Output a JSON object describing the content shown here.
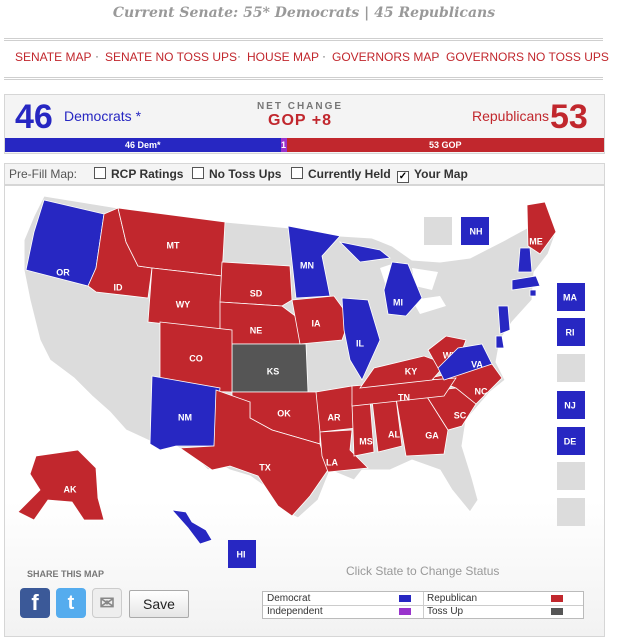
{
  "headline": "Current Senate: 55* Democrats | 45 Republicans",
  "nav": [
    "SENATE MAP",
    "SENATE NO TOSS UPS",
    "HOUSE MAP",
    "GOVERNORS MAP",
    "GOVERNORS NO TOSS UPS"
  ],
  "score": {
    "dem_count": "46",
    "dem_label": "Democrats *",
    "net_change_label": "NET CHANGE",
    "net_change_value": "GOP +8",
    "rep_label": "Republicans",
    "rep_count": "53"
  },
  "seat_bar": {
    "dem_text": "46 Dem*",
    "tossup_text": "1",
    "gop_text": "53 GOP",
    "dem_seats": 46,
    "tossup_seats": 1,
    "gop_seats": 53
  },
  "prefill": {
    "label": "Pre-Fill Map:",
    "options": [
      {
        "label": "RCP Ratings",
        "checked": false
      },
      {
        "label": "No Toss Ups",
        "checked": false
      },
      {
        "label": "Currently Held",
        "checked": false
      },
      {
        "label": "Your Map",
        "checked": true
      }
    ]
  },
  "states": {
    "OR": "Democrat",
    "MT": "Republican",
    "ID": "Republican",
    "WY": "Republican",
    "SD": "Republican",
    "NE": "Republican",
    "KS": "Toss Up",
    "CO": "Republican",
    "NM": "Democrat",
    "OK": "Republican",
    "TX": "Republican",
    "MN": "Democrat",
    "IA": "Republican",
    "AR": "Republican",
    "LA": "Republican",
    "MS": "Republican",
    "AL": "Republican",
    "GA": "Republican",
    "SC": "Republican",
    "NC": "Republican",
    "TN": "Republican",
    "KY": "Republican",
    "WV": "Republican",
    "VA": "Democrat",
    "IL": "Democrat",
    "MI": "Democrat",
    "ME": "Republican",
    "NH": "Democrat",
    "MA": "Democrat",
    "RI": "Democrat",
    "NJ": "Democrat",
    "DE": "Democrat",
    "AK": "Republican",
    "HI": "Democrat"
  },
  "colors": {
    "Democrat": "#2727c2",
    "Republican": "#c1272d",
    "Independent": "#9933cc",
    "Toss Up": "#555555",
    "none": "#dcdcdc"
  },
  "hint": "Click State to Change Status",
  "share": {
    "label": "SHARE THIS MAP",
    "icons": [
      "facebook-icon",
      "twitter-icon",
      "email-icon"
    ],
    "save_label": "Save"
  },
  "legend": [
    {
      "label": "Democrat",
      "color": "#2727c2"
    },
    {
      "label": "Republican",
      "color": "#c1272d"
    },
    {
      "label": "Independent",
      "color": "#9933cc"
    },
    {
      "label": "Toss Up",
      "color": "#555555"
    }
  ]
}
